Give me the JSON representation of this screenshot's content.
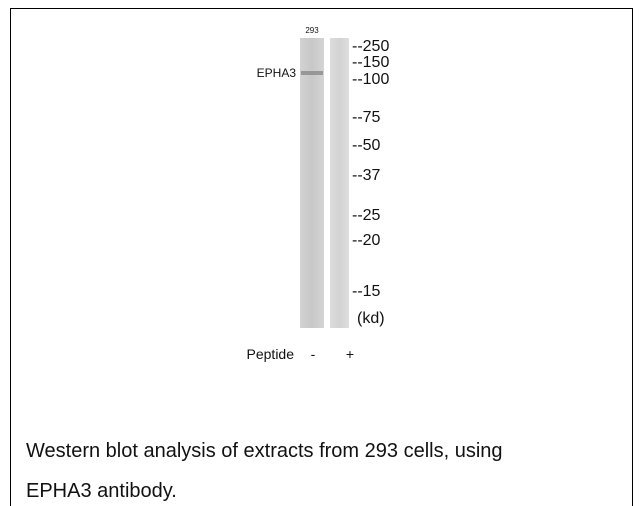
{
  "blot": {
    "lane_label": "293",
    "band_label": "EPHA3",
    "markers": [
      "--250",
      "--150",
      "--100",
      "--75",
      "--50",
      "--37",
      "--25",
      "--20",
      "--15"
    ],
    "unit": "(kd)",
    "peptide": {
      "label": "Peptide",
      "lanes": [
        "-",
        "+"
      ]
    }
  },
  "caption": {
    "lines": [
      "Western blot analysis of extracts from 293 cells, using",
      "EPHA3 antibody."
    ]
  }
}
